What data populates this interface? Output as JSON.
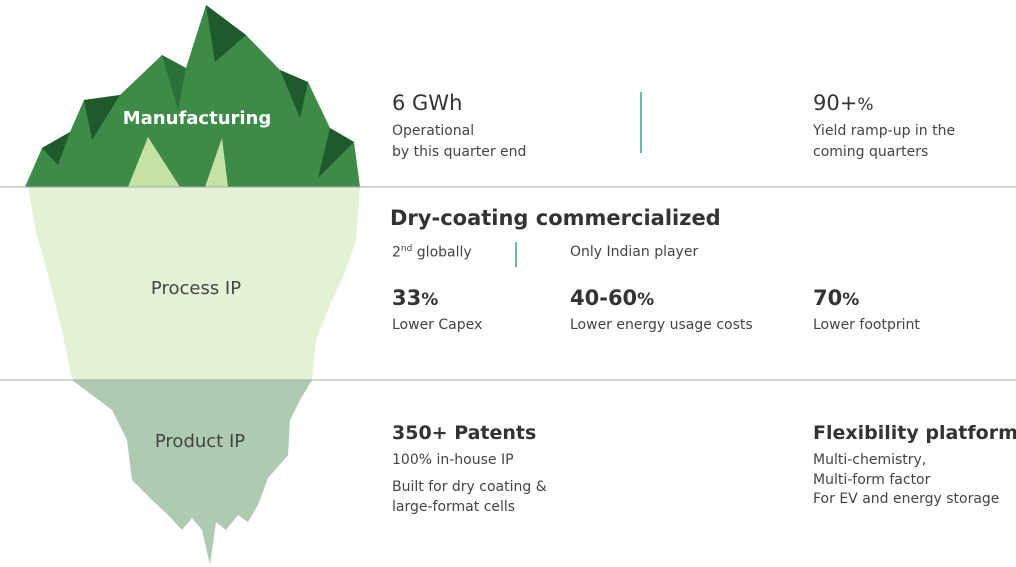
{
  "iceberg": {
    "top": "Manufacturing",
    "middle": "Process IP",
    "bottom": "Product IP"
  },
  "manufacturing": {
    "left": {
      "value": "6 GWh",
      "lines": [
        "Operational",
        "by this quarter end"
      ]
    },
    "right": {
      "value": "90+",
      "unit": "%",
      "lines": [
        "Yield ramp-up in the",
        "coming quarters"
      ]
    }
  },
  "process": {
    "title": "Dry-coating commercialized",
    "rank": {
      "number": "2",
      "suffix": "nd",
      "text": "globally"
    },
    "note": "Only Indian player",
    "stats": [
      {
        "value": "33",
        "unit": "%",
        "label": "Lower Capex"
      },
      {
        "value": "40-60",
        "unit": "%",
        "label": "Lower energy usage costs"
      },
      {
        "value": "70",
        "unit": "%",
        "label": "Lower footprint"
      }
    ]
  },
  "product": {
    "left": {
      "title": "350+ Patents",
      "lines": [
        "100% in-house IP",
        "Built for dry coating &",
        "large-format cells"
      ]
    },
    "right": {
      "title": "Flexibility platform",
      "lines": [
        "Multi-chemistry,",
        "Multi-form factor",
        "For EV and energy storage"
      ]
    }
  }
}
